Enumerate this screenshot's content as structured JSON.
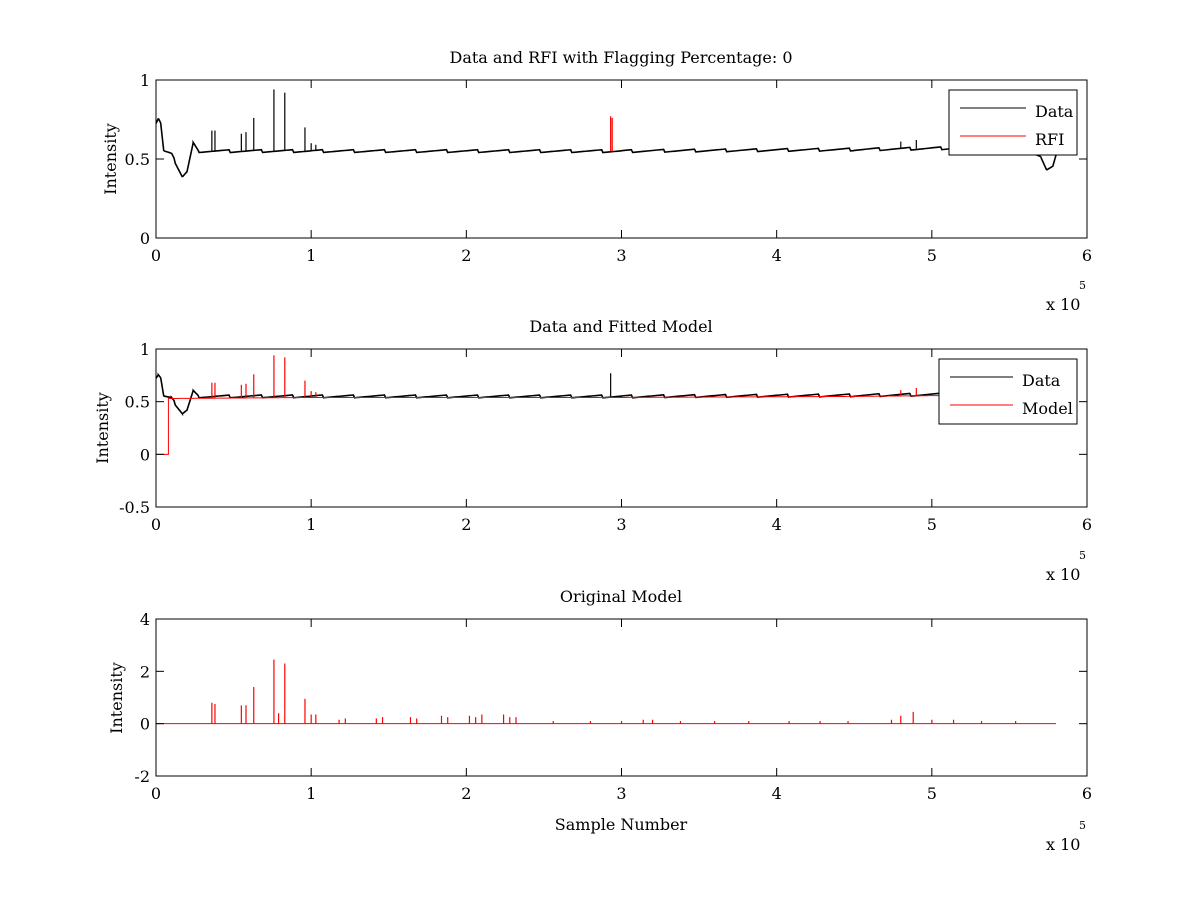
{
  "colors": {
    "data": "#000000",
    "rfi": "#ff0000",
    "background": "#ffffff",
    "axes": "#000000"
  },
  "chart_data": [
    {
      "type": "line",
      "title": "Data and RFI with Flagging Percentage: 0",
      "xlabel": "",
      "ylabel": "Intensity",
      "xlim": [
        0,
        600000
      ],
      "ylim": [
        0,
        1
      ],
      "xticks": [
        "0",
        "1",
        "2",
        "3",
        "4",
        "5",
        "6"
      ],
      "yticks": [
        "0",
        "0.5",
        "1"
      ],
      "ytick_values": [
        0,
        0.5,
        1
      ],
      "x_multiplier": "x 10",
      "x_multiplier_exp": "5",
      "legend": {
        "position": "top-right",
        "entries": [
          "Data",
          "RFI"
        ]
      },
      "series": [
        {
          "name": "Data",
          "color": "#000000",
          "baseline_points": [
            [
              0,
              0.73
            ],
            [
              1500,
              0.76
            ],
            [
              3000,
              0.73
            ],
            [
              5000,
              0.55
            ],
            [
              10000,
              0.53
            ],
            [
              14000,
              0.45
            ],
            [
              17000,
              0.39
            ],
            [
              20000,
              0.42
            ],
            [
              24000,
              0.6
            ],
            [
              27000,
              0.55
            ],
            [
              100000,
              0.55
            ],
            [
              300000,
              0.55
            ],
            [
              450000,
              0.56
            ],
            [
              520000,
              0.57
            ],
            [
              560000,
              0.57
            ],
            [
              570000,
              0.52
            ],
            [
              574000,
              0.43
            ],
            [
              578000,
              0.45
            ],
            [
              581000,
              0.55
            ]
          ],
          "spikes": [
            [
              36000,
              0.68
            ],
            [
              38000,
              0.68
            ],
            [
              55000,
              0.66
            ],
            [
              58000,
              0.67
            ],
            [
              63000,
              0.76
            ],
            [
              76000,
              0.94
            ],
            [
              83000,
              0.92
            ],
            [
              96000,
              0.7
            ],
            [
              100000,
              0.6
            ],
            [
              103000,
              0.59
            ],
            [
              480000,
              0.61
            ],
            [
              490000,
              0.62
            ]
          ]
        },
        {
          "name": "RFI",
          "color": "#ff0000",
          "spikes": [
            [
              293000,
              0.77
            ],
            [
              294000,
              0.76
            ]
          ]
        }
      ]
    },
    {
      "type": "line",
      "title": "Data and Fitted Model",
      "xlabel": "",
      "ylabel": "Intensity",
      "xlim": [
        0,
        600000
      ],
      "ylim": [
        -0.5,
        1
      ],
      "xticks": [
        "0",
        "1",
        "2",
        "3",
        "4",
        "5",
        "6"
      ],
      "yticks": [
        "-0.5",
        "0",
        "0.5",
        "1"
      ],
      "ytick_values": [
        -0.5,
        0,
        0.5,
        1
      ],
      "x_multiplier": "x 10",
      "x_multiplier_exp": "5",
      "legend": {
        "position": "top-right",
        "entries": [
          "Data",
          "Model"
        ]
      },
      "series": [
        {
          "name": "Data",
          "color": "#000000",
          "baseline_points": [
            [
              0,
              0.73
            ],
            [
              1500,
              0.76
            ],
            [
              3000,
              0.73
            ],
            [
              5000,
              0.55
            ],
            [
              10000,
              0.53
            ],
            [
              14000,
              0.45
            ],
            [
              17000,
              0.39
            ],
            [
              20000,
              0.42
            ],
            [
              24000,
              0.6
            ],
            [
              27000,
              0.55
            ],
            [
              100000,
              0.55
            ],
            [
              300000,
              0.55
            ],
            [
              450000,
              0.56
            ],
            [
              520000,
              0.57
            ],
            [
              560000,
              0.57
            ]
          ],
          "spikes": [
            [
              293000,
              0.77
            ]
          ]
        },
        {
          "name": "Model",
          "color": "#ff0000",
          "baseline_points": [
            [
              0,
              0
            ],
            [
              8000,
              0
            ],
            [
              8000,
              0.53
            ],
            [
              100000,
              0.54
            ],
            [
              300000,
              0.54
            ],
            [
              450000,
              0.55
            ],
            [
              520000,
              0.56
            ],
            [
              560000,
              0.57
            ]
          ],
          "spikes": [
            [
              36000,
              0.68
            ],
            [
              38000,
              0.68
            ],
            [
              55000,
              0.66
            ],
            [
              58000,
              0.67
            ],
            [
              63000,
              0.76
            ],
            [
              76000,
              0.94
            ],
            [
              83000,
              0.92
            ],
            [
              96000,
              0.7
            ],
            [
              100000,
              0.6
            ],
            [
              103000,
              0.59
            ],
            [
              480000,
              0.61
            ],
            [
              490000,
              0.63
            ]
          ]
        }
      ]
    },
    {
      "type": "line",
      "title": "Original Model",
      "xlabel": "Sample Number",
      "ylabel": "Intensity",
      "xlim": [
        0,
        600000
      ],
      "ylim": [
        -2,
        4
      ],
      "xticks": [
        "0",
        "1",
        "2",
        "3",
        "4",
        "5",
        "6"
      ],
      "yticks": [
        "-2",
        "0",
        "2",
        "4"
      ],
      "ytick_values": [
        -2,
        0,
        2,
        4
      ],
      "x_multiplier": "x 10",
      "x_multiplier_exp": "5",
      "series": [
        {
          "name": "Model",
          "color": "#ff0000",
          "baseline_points": [
            [
              0,
              0
            ],
            [
              580000,
              0
            ]
          ],
          "spikes": [
            [
              36000,
              0.8
            ],
            [
              38000,
              0.75
            ],
            [
              55000,
              0.7
            ],
            [
              58000,
              0.7
            ],
            [
              63000,
              1.4
            ],
            [
              76000,
              2.45
            ],
            [
              79000,
              0.4
            ],
            [
              83000,
              2.3
            ],
            [
              96000,
              0.95
            ],
            [
              100000,
              0.35
            ],
            [
              103000,
              0.35
            ],
            [
              118000,
              0.15
            ],
            [
              122000,
              0.2
            ],
            [
              142000,
              0.2
            ],
            [
              146000,
              0.25
            ],
            [
              164000,
              0.25
            ],
            [
              168000,
              0.2
            ],
            [
              184000,
              0.3
            ],
            [
              188000,
              0.25
            ],
            [
              202000,
              0.3
            ],
            [
              206000,
              0.25
            ],
            [
              210000,
              0.35
            ],
            [
              224000,
              0.35
            ],
            [
              228000,
              0.25
            ],
            [
              232000,
              0.25
            ],
            [
              256000,
              0.1
            ],
            [
              280000,
              0.1
            ],
            [
              300000,
              0.1
            ],
            [
              314000,
              0.15
            ],
            [
              320000,
              0.15
            ],
            [
              338000,
              0.1
            ],
            [
              360000,
              0.1
            ],
            [
              382000,
              0.1
            ],
            [
              408000,
              0.1
            ],
            [
              428000,
              0.1
            ],
            [
              446000,
              0.1
            ],
            [
              474000,
              0.15
            ],
            [
              480000,
              0.3
            ],
            [
              488000,
              0.45
            ],
            [
              500000,
              0.15
            ],
            [
              514000,
              0.15
            ],
            [
              532000,
              0.1
            ],
            [
              554000,
              0.1
            ]
          ]
        }
      ]
    }
  ]
}
